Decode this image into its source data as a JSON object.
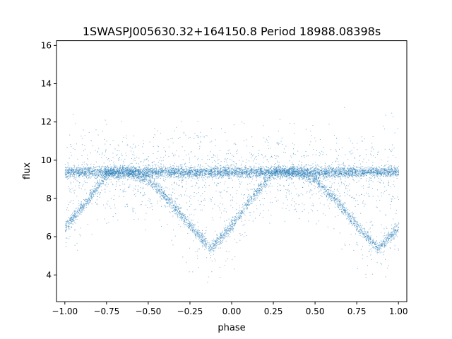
{
  "chart_data": {
    "type": "scatter",
    "title": "1SWASPJ005630.32+164150.8 Period 18988.08398s",
    "xlabel": "phase",
    "ylabel": "flux",
    "xlim": [
      -1.05,
      1.05
    ],
    "ylim": [
      2.6,
      16.25
    ],
    "x_ticks": [
      -1.0,
      -0.75,
      -0.5,
      -0.25,
      0.0,
      0.25,
      0.5,
      0.75,
      1.0
    ],
    "x_tick_labels": [
      "−1.00",
      "−0.75",
      "−0.50",
      "−0.25",
      "0.00",
      "0.25",
      "0.50",
      "0.75",
      "1.00"
    ],
    "y_ticks": [
      4,
      6,
      8,
      10,
      12,
      14,
      16
    ],
    "y_tick_labels": [
      "4",
      "6",
      "8",
      "10",
      "12",
      "14",
      "16"
    ],
    "grid": false,
    "marker_color": "#1f77b4",
    "series": [
      {
        "phase": [
          -1.0,
          -0.875,
          -0.75,
          -0.625,
          -0.5,
          -0.375,
          -0.25,
          -0.125,
          0.0,
          0.125,
          0.25,
          0.375,
          0.5,
          0.625,
          0.75,
          0.875,
          1.0
        ],
        "flux_baseline": [
          9.4,
          9.4,
          9.4,
          9.4,
          9.4,
          9.4,
          9.4,
          9.4,
          9.4,
          9.4,
          9.4,
          9.4,
          9.4,
          9.4,
          9.4,
          9.4,
          9.4
        ],
        "flux_eclipse_track": [
          6.5,
          7.8,
          9.3,
          9.4,
          9.0,
          7.9,
          6.6,
          5.4,
          6.6,
          8.1,
          9.4,
          9.4,
          9.0,
          7.9,
          6.6,
          5.4,
          6.5
        ]
      }
    ]
  }
}
